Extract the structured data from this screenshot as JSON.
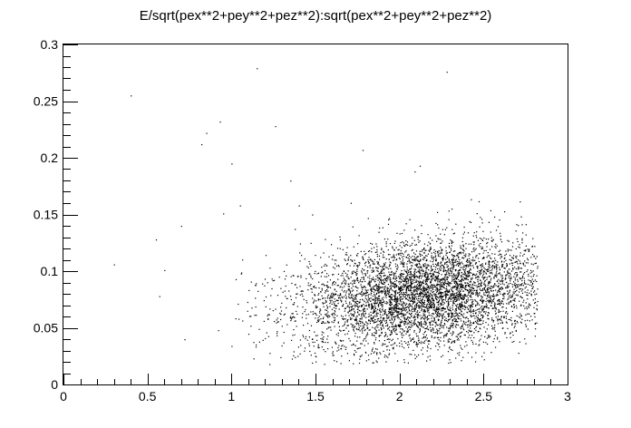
{
  "chart_data": {
    "type": "scatter",
    "title": "E/sqrt(pex**2+pey**2+pez**2):sqrt(pex**2+pey**2+pez**2)",
    "xlabel": "",
    "ylabel": "",
    "xlim": [
      0,
      3
    ],
    "ylim": [
      0,
      0.3
    ],
    "xticks": [
      0,
      0.5,
      1,
      1.5,
      2,
      2.5,
      3
    ],
    "xtick_labels": [
      "0",
      "0.5",
      "1",
      "1.5",
      "2",
      "2.5",
      "3"
    ],
    "yticks": [
      0,
      0.05,
      0.1,
      0.15,
      0.2,
      0.25,
      0.3
    ],
    "ytick_labels": [
      "0",
      "0.05",
      "0.1",
      "0.15",
      "0.2",
      "0.25",
      "0.3"
    ],
    "grid": false,
    "marker_color": "#000000",
    "points_outliers": [
      {
        "x": 0.4,
        "y": 0.255
      },
      {
        "x": 1.15,
        "y": 0.279
      },
      {
        "x": 2.28,
        "y": 0.276
      },
      {
        "x": 0.93,
        "y": 0.232
      },
      {
        "x": 0.85,
        "y": 0.222
      },
      {
        "x": 0.82,
        "y": 0.212
      },
      {
        "x": 1.26,
        "y": 0.228
      },
      {
        "x": 1.0,
        "y": 0.195
      },
      {
        "x": 1.78,
        "y": 0.207
      },
      {
        "x": 2.12,
        "y": 0.193
      },
      {
        "x": 2.09,
        "y": 0.188
      },
      {
        "x": 1.35,
        "y": 0.18
      },
      {
        "x": 0.3,
        "y": 0.106
      },
      {
        "x": 0.55,
        "y": 0.128
      },
      {
        "x": 0.57,
        "y": 0.078
      },
      {
        "x": 0.6,
        "y": 0.101
      },
      {
        "x": 0.7,
        "y": 0.14
      },
      {
        "x": 0.72,
        "y": 0.04
      },
      {
        "x": 0.92,
        "y": 0.048
      },
      {
        "x": 0.95,
        "y": 0.151
      },
      {
        "x": 1.0,
        "y": 0.034
      },
      {
        "x": 1.05,
        "y": 0.158
      },
      {
        "x": 1.4,
        "y": 0.158
      },
      {
        "x": 1.48,
        "y": 0.15
      }
    ],
    "cluster": {
      "count": 5200,
      "x_center": 2.15,
      "x_spread": 0.38,
      "x_range": [
        1.02,
        2.82
      ],
      "y_center": 0.08,
      "y_spread": 0.024,
      "y_slope": 0.015,
      "y_range": [
        0.018,
        0.175
      ]
    }
  }
}
